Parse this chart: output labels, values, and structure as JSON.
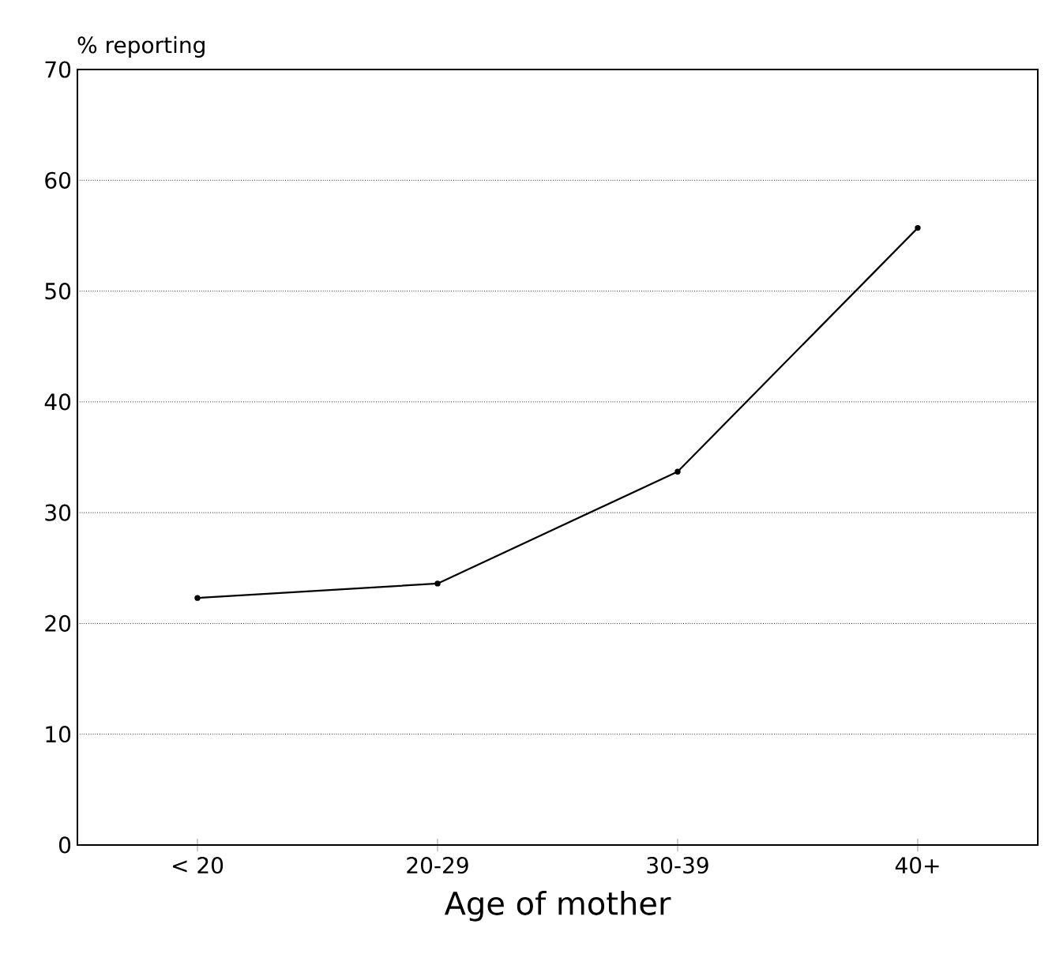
{
  "chart_data": {
    "type": "line",
    "ylabel": "% reporting",
    "xlabel": "Age of mother",
    "categories": [
      "< 20",
      "20-29",
      "30-39",
      "40+"
    ],
    "series": [
      {
        "color": "#000000",
        "values": [
          22.3,
          23.6,
          33.7,
          55.7
        ]
      }
    ],
    "ylim": [
      0,
      70
    ],
    "yticks": [
      0,
      10,
      20,
      30,
      40,
      50,
      60,
      70
    ],
    "grid": "y",
    "marker": "circle",
    "line_style": "solid"
  }
}
